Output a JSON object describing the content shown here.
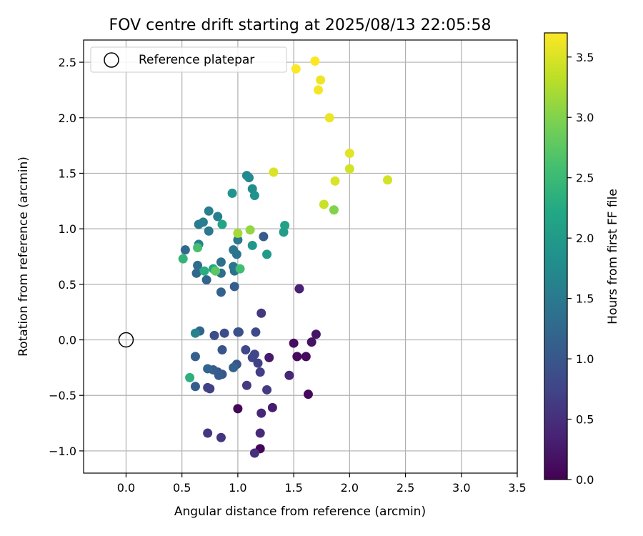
{
  "chart_data": {
    "type": "scatter",
    "title": "FOV centre drift starting at 2025/08/13 22:05:58",
    "xlabel": "Angular distance from reference (arcmin)",
    "ylabel": "Rotation from reference (arcmin)",
    "xlim": [
      -0.38,
      3.5
    ],
    "ylim": [
      -1.2,
      2.7
    ],
    "x_ticks": [
      "0.0",
      "0.5",
      "1.0",
      "1.5",
      "2.0",
      "2.5",
      "3.0",
      "3.5"
    ],
    "y_ticks": [
      "−1.0",
      "−0.5",
      "0.0",
      "0.5",
      "1.0",
      "1.5",
      "2.0",
      "2.5"
    ],
    "grid": true,
    "legend": {
      "placement": "top-left",
      "entries": [
        "Reference platepar"
      ]
    },
    "reference": {
      "x": 0.0,
      "y": 0.0,
      "label": "Reference platepar"
    },
    "colorbar": {
      "label": "Hours from first FF file",
      "range": [
        0.0,
        3.7
      ],
      "ticks": [
        "0.0",
        "0.5",
        "1.0",
        "1.5",
        "2.0",
        "2.5",
        "3.0",
        "3.5"
      ],
      "colormap": "viridis"
    },
    "points": [
      {
        "x": 1.0,
        "y": -0.62,
        "h": 0.05
      },
      {
        "x": 1.2,
        "y": -0.98,
        "h": 0.05
      },
      {
        "x": 1.63,
        "y": -0.49,
        "h": 0.08
      },
      {
        "x": 1.53,
        "y": -0.15,
        "h": 0.1
      },
      {
        "x": 1.61,
        "y": -0.15,
        "h": 0.12
      },
      {
        "x": 1.5,
        "y": -0.03,
        "h": 0.15
      },
      {
        "x": 1.66,
        "y": -0.02,
        "h": 0.18
      },
      {
        "x": 1.7,
        "y": 0.05,
        "h": 0.2
      },
      {
        "x": 1.28,
        "y": -0.16,
        "h": 0.25
      },
      {
        "x": 1.31,
        "y": -0.61,
        "h": 0.3
      },
      {
        "x": 1.55,
        "y": 0.46,
        "h": 0.35
      },
      {
        "x": 1.46,
        "y": -0.32,
        "h": 0.4
      },
      {
        "x": 1.21,
        "y": -0.66,
        "h": 0.42
      },
      {
        "x": 1.2,
        "y": -0.84,
        "h": 0.45
      },
      {
        "x": 1.15,
        "y": -1.02,
        "h": 0.5
      },
      {
        "x": 0.85,
        "y": -0.88,
        "h": 0.55
      },
      {
        "x": 0.73,
        "y": -0.84,
        "h": 0.55
      },
      {
        "x": 1.21,
        "y": 0.24,
        "h": 0.6
      },
      {
        "x": 1.08,
        "y": -0.41,
        "h": 0.62
      },
      {
        "x": 1.26,
        "y": -0.45,
        "h": 0.65
      },
      {
        "x": 1.2,
        "y": -0.29,
        "h": 0.68
      },
      {
        "x": 1.18,
        "y": -0.21,
        "h": 0.7
      },
      {
        "x": 0.75,
        "y": -0.44,
        "h": 0.7
      },
      {
        "x": 0.73,
        "y": -0.43,
        "h": 0.72
      },
      {
        "x": 1.13,
        "y": -0.16,
        "h": 0.75
      },
      {
        "x": 1.15,
        "y": -0.13,
        "h": 0.78
      },
      {
        "x": 1.07,
        "y": -0.09,
        "h": 0.8
      },
      {
        "x": 1.16,
        "y": 0.07,
        "h": 0.82
      },
      {
        "x": 0.88,
        "y": 0.06,
        "h": 0.85
      },
      {
        "x": 0.79,
        "y": 0.04,
        "h": 0.88
      },
      {
        "x": 1.0,
        "y": 0.07,
        "h": 0.9
      },
      {
        "x": 1.01,
        "y": 0.07,
        "h": 0.92
      },
      {
        "x": 0.86,
        "y": -0.09,
        "h": 0.95
      },
      {
        "x": 0.99,
        "y": -0.22,
        "h": 0.98
      },
      {
        "x": 0.82,
        "y": -0.29,
        "h": 1.0
      },
      {
        "x": 0.86,
        "y": -0.31,
        "h": 1.02
      },
      {
        "x": 0.83,
        "y": -0.32,
        "h": 1.05
      },
      {
        "x": 0.78,
        "y": -0.27,
        "h": 1.08
      },
      {
        "x": 0.62,
        "y": -0.42,
        "h": 1.1
      },
      {
        "x": 0.62,
        "y": -0.15,
        "h": 1.12
      },
      {
        "x": 0.96,
        "y": -0.25,
        "h": 1.15
      },
      {
        "x": 0.73,
        "y": -0.26,
        "h": 1.18
      },
      {
        "x": 0.66,
        "y": 0.08,
        "h": 1.2
      },
      {
        "x": 1.23,
        "y": 0.93,
        "h": 1.05
      },
      {
        "x": 0.97,
        "y": 0.48,
        "h": 1.1
      },
      {
        "x": 0.85,
        "y": 0.43,
        "h": 1.15
      },
      {
        "x": 0.72,
        "y": 0.54,
        "h": 1.2
      },
      {
        "x": 0.63,
        "y": 0.6,
        "h": 1.25
      },
      {
        "x": 0.53,
        "y": 0.81,
        "h": 1.28
      },
      {
        "x": 0.64,
        "y": 0.67,
        "h": 1.3
      },
      {
        "x": 0.85,
        "y": 0.6,
        "h": 1.32
      },
      {
        "x": 0.85,
        "y": 0.7,
        "h": 1.35
      },
      {
        "x": 0.97,
        "y": 0.62,
        "h": 1.38
      },
      {
        "x": 0.96,
        "y": 0.66,
        "h": 1.4
      },
      {
        "x": 0.99,
        "y": 0.77,
        "h": 1.42
      },
      {
        "x": 0.96,
        "y": 0.81,
        "h": 1.45
      },
      {
        "x": 1.0,
        "y": 0.9,
        "h": 1.48
      },
      {
        "x": 0.74,
        "y": 0.98,
        "h": 1.5
      },
      {
        "x": 0.65,
        "y": 1.04,
        "h": 1.52
      },
      {
        "x": 0.69,
        "y": 1.06,
        "h": 1.55
      },
      {
        "x": 0.74,
        "y": 1.16,
        "h": 1.58
      },
      {
        "x": 0.82,
        "y": 1.11,
        "h": 1.6
      },
      {
        "x": 0.65,
        "y": 0.86,
        "h": 1.62
      },
      {
        "x": 0.62,
        "y": 0.06,
        "h": 1.65
      },
      {
        "x": 1.08,
        "y": 1.48,
        "h": 1.7
      },
      {
        "x": 1.1,
        "y": 1.46,
        "h": 1.75
      },
      {
        "x": 1.13,
        "y": 1.36,
        "h": 1.8
      },
      {
        "x": 1.15,
        "y": 1.3,
        "h": 1.85
      },
      {
        "x": 0.95,
        "y": 1.32,
        "h": 1.9
      },
      {
        "x": 1.13,
        "y": 0.85,
        "h": 1.95
      },
      {
        "x": 1.26,
        "y": 0.77,
        "h": 2.0
      },
      {
        "x": 1.41,
        "y": 0.97,
        "h": 2.05
      },
      {
        "x": 1.42,
        "y": 1.03,
        "h": 2.1
      },
      {
        "x": 0.86,
        "y": 1.04,
        "h": 2.15
      },
      {
        "x": 0.78,
        "y": 0.64,
        "h": 2.2
      },
      {
        "x": 0.7,
        "y": 0.62,
        "h": 2.3
      },
      {
        "x": 0.57,
        "y": -0.34,
        "h": 2.35
      },
      {
        "x": 0.51,
        "y": 0.73,
        "h": 2.4
      },
      {
        "x": 1.02,
        "y": 0.64,
        "h": 2.55
      },
      {
        "x": 0.64,
        "y": 0.83,
        "h": 2.6
      },
      {
        "x": 0.8,
        "y": 0.62,
        "h": 2.75
      },
      {
        "x": 1.86,
        "y": 1.17,
        "h": 3.0
      },
      {
        "x": 1.11,
        "y": 0.99,
        "h": 3.1
      },
      {
        "x": 1.0,
        "y": 0.96,
        "h": 3.2
      },
      {
        "x": 1.77,
        "y": 1.22,
        "h": 3.4
      },
      {
        "x": 2.0,
        "y": 1.54,
        "h": 3.45
      },
      {
        "x": 2.34,
        "y": 1.44,
        "h": 3.45
      },
      {
        "x": 1.87,
        "y": 1.43,
        "h": 3.5
      },
      {
        "x": 2.0,
        "y": 1.68,
        "h": 3.55
      },
      {
        "x": 1.32,
        "y": 1.51,
        "h": 3.5
      },
      {
        "x": 1.82,
        "y": 2.0,
        "h": 3.6
      },
      {
        "x": 1.74,
        "y": 2.34,
        "h": 3.62
      },
      {
        "x": 1.72,
        "y": 2.25,
        "h": 3.65
      },
      {
        "x": 1.52,
        "y": 2.44,
        "h": 3.68
      },
      {
        "x": 1.69,
        "y": 2.51,
        "h": 3.7
      }
    ]
  }
}
